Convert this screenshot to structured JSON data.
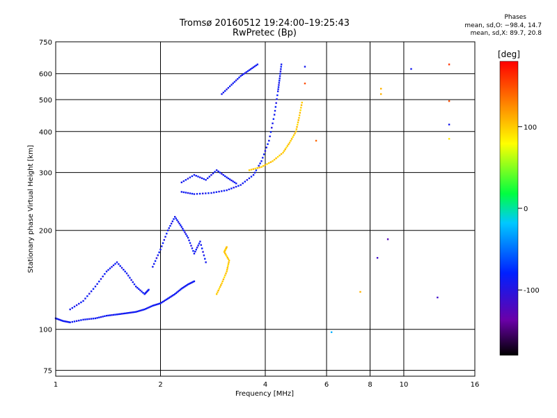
{
  "chart_data": {
    "type": "scatter",
    "title": "Tromsø 20160512 19:24:00–19:25:43",
    "subtitle": "RwPretec (Bp)",
    "xlabel": "Frequency [MHz]",
    "ylabel": "Stationary phase Virtual Height [km]",
    "xscale": "log",
    "yscale": "log",
    "xlim": [
      1,
      16
    ],
    "ylim": [
      72,
      750
    ],
    "xticks": [
      1,
      2,
      4,
      6,
      8,
      10,
      16
    ],
    "xtick_labels": [
      "1",
      "2",
      "4",
      "6",
      "8",
      "10",
      "16"
    ],
    "yticks": [
      75,
      100,
      200,
      300,
      400,
      500,
      600,
      750
    ],
    "ytick_labels": [
      "75",
      "100",
      "200",
      "300",
      "400",
      "500",
      "600",
      "750"
    ],
    "grid": true,
    "phase_header": "Phases",
    "phase_o": "mean, sd,O: −98.4, 14.7",
    "phase_x": "mean, sd,X:  89.7, 20.8",
    "colorbar": {
      "label": "[deg]",
      "range": [
        -180,
        180
      ],
      "ticks": [
        100,
        0,
        -100
      ],
      "tick_labels": [
        "100",
        "0",
        "-100"
      ]
    },
    "traces": [
      {
        "mode": "O",
        "phase": -100,
        "points": [
          [
            1.0,
            108
          ],
          [
            1.05,
            106
          ],
          [
            1.1,
            105
          ],
          [
            1.2,
            107
          ],
          [
            1.3,
            108
          ],
          [
            1.4,
            110
          ],
          [
            1.5,
            111
          ],
          [
            1.6,
            112
          ],
          [
            1.7,
            113
          ],
          [
            1.8,
            115
          ],
          [
            1.9,
            118
          ],
          [
            2.0,
            120
          ],
          [
            2.1,
            124
          ],
          [
            2.2,
            128
          ],
          [
            2.3,
            133
          ],
          [
            2.4,
            137
          ],
          [
            2.5,
            140
          ]
        ]
      },
      {
        "mode": "O",
        "phase": -100,
        "points": [
          [
            1.1,
            115
          ],
          [
            1.2,
            122
          ],
          [
            1.3,
            135
          ],
          [
            1.4,
            150
          ],
          [
            1.5,
            160
          ],
          [
            1.6,
            148
          ],
          [
            1.7,
            135
          ],
          [
            1.8,
            128
          ],
          [
            1.85,
            132
          ]
        ]
      },
      {
        "mode": "O",
        "phase": -100,
        "points": [
          [
            1.9,
            155
          ],
          [
            2.0,
            175
          ],
          [
            2.1,
            200
          ],
          [
            2.2,
            220
          ],
          [
            2.3,
            205
          ],
          [
            2.4,
            190
          ],
          [
            2.5,
            170
          ],
          [
            2.6,
            185
          ],
          [
            2.7,
            160
          ]
        ]
      },
      {
        "mode": "O",
        "phase": -100,
        "points": [
          [
            2.3,
            262
          ],
          [
            2.5,
            258
          ],
          [
            2.8,
            260
          ],
          [
            3.1,
            265
          ],
          [
            3.4,
            275
          ],
          [
            3.7,
            295
          ],
          [
            3.9,
            325
          ],
          [
            4.1,
            375
          ],
          [
            4.25,
            450
          ],
          [
            4.35,
            530
          ],
          [
            4.4,
            580
          ],
          [
            4.45,
            640
          ]
        ]
      },
      {
        "mode": "O",
        "phase": -100,
        "points": [
          [
            2.3,
            280
          ],
          [
            2.5,
            295
          ],
          [
            2.7,
            285
          ],
          [
            2.9,
            305
          ],
          [
            3.1,
            290
          ],
          [
            3.3,
            278
          ]
        ]
      },
      {
        "mode": "O",
        "phase": -100,
        "points": [
          [
            3.0,
            520
          ],
          [
            3.2,
            555
          ],
          [
            3.4,
            590
          ],
          [
            3.6,
            615
          ],
          [
            3.8,
            640
          ]
        ]
      },
      {
        "mode": "X",
        "phase": 100,
        "points": [
          [
            3.6,
            305
          ],
          [
            3.9,
            312
          ],
          [
            4.2,
            325
          ],
          [
            4.5,
            345
          ],
          [
            4.7,
            370
          ],
          [
            4.9,
            400
          ],
          [
            5.0,
            440
          ],
          [
            5.1,
            490
          ]
        ]
      },
      {
        "mode": "X",
        "phase": 100,
        "points": [
          [
            2.9,
            128
          ],
          [
            3.0,
            138
          ],
          [
            3.1,
            150
          ],
          [
            3.15,
            162
          ],
          [
            3.05,
            172
          ],
          [
            3.1,
            178
          ]
        ]
      }
    ],
    "scattered_points": [
      {
        "x": 8.6,
        "y": 540,
        "phase": 110
      },
      {
        "x": 8.6,
        "y": 520,
        "phase": 110
      },
      {
        "x": 13.5,
        "y": 640,
        "phase": 160
      },
      {
        "x": 13.5,
        "y": 495,
        "phase": 150
      },
      {
        "x": 13.5,
        "y": 420,
        "phase": -100
      },
      {
        "x": 13.5,
        "y": 380,
        "phase": 90
      },
      {
        "x": 10.5,
        "y": 620,
        "phase": -100
      },
      {
        "x": 5.2,
        "y": 630,
        "phase": -100
      },
      {
        "x": 5.2,
        "y": 560,
        "phase": 150
      },
      {
        "x": 5.6,
        "y": 375,
        "phase": 140
      },
      {
        "x": 6.2,
        "y": 98,
        "phase": -30
      },
      {
        "x": 8.4,
        "y": 165,
        "phase": -120
      },
      {
        "x": 9.0,
        "y": 188,
        "phase": -130
      },
      {
        "x": 7.5,
        "y": 130,
        "phase": 110
      },
      {
        "x": 12.5,
        "y": 125,
        "phase": -120
      }
    ]
  }
}
